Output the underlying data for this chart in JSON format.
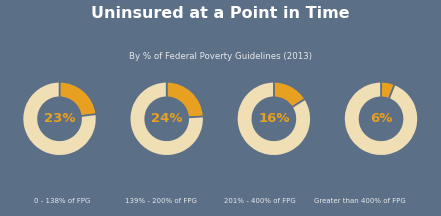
{
  "title": "Uninsured at a Point in Time",
  "subtitle": "By % of Federal Poverty Guidelines (2013)",
  "background_color": "#5b6f87",
  "title_color": "#ffffff",
  "subtitle_color": "#e8e8e8",
  "label_color": "#e8e8e8",
  "pct_color": "#e8a020",
  "donut_highlight_color": "#e8a020",
  "donut_base_color": "#f0deb4",
  "values": [
    23,
    24,
    16,
    6
  ],
  "labels": [
    "0 - 138% of FPG",
    "139% - 200% of FPG",
    "201% - 400% of FPG",
    "Greater than 400% of FPG"
  ],
  "pct_labels": [
    "23%",
    "24%",
    "16%",
    "6%"
  ],
  "donut_width": 0.42,
  "gap_color": "#5b6f87"
}
